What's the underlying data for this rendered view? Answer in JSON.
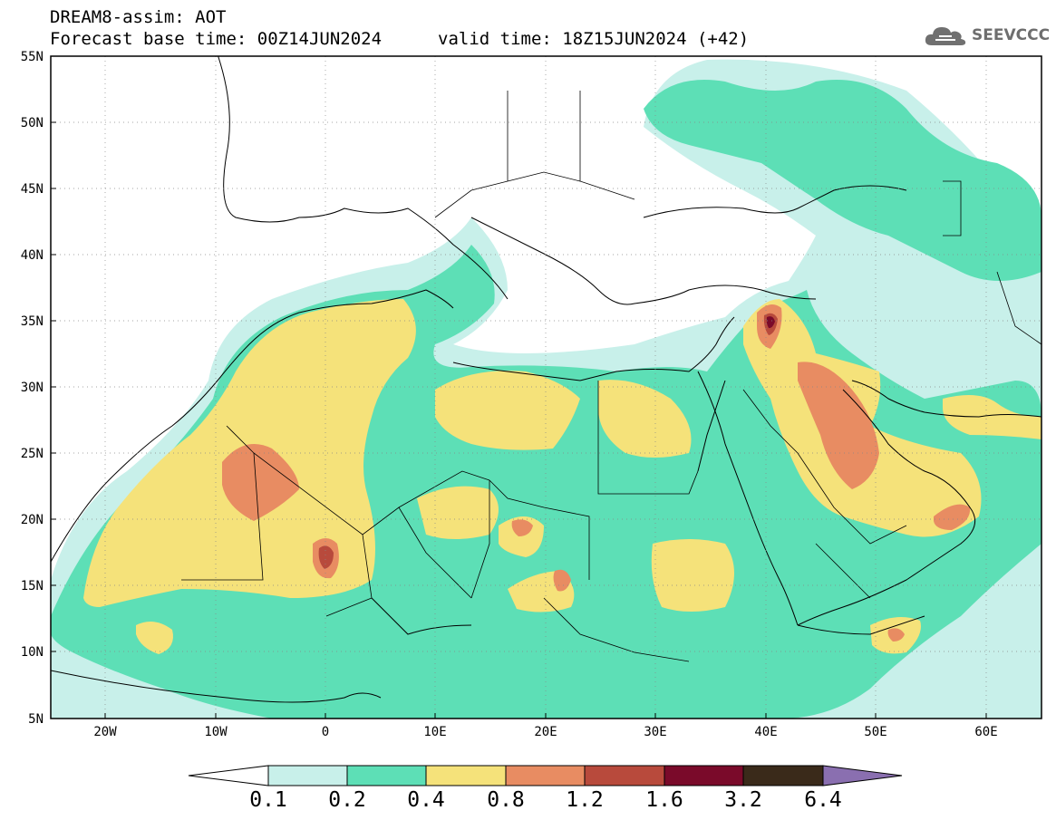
{
  "header": {
    "line1": "DREAM8-assim: AOT",
    "line2": "Forecast base time: 00Z14JUN2024",
    "valid": "valid time: 18Z15JUN2024 (+42)",
    "logo_text": "SEEVCCC"
  },
  "map": {
    "lat_labels": [
      "55N",
      "50N",
      "45N",
      "40N",
      "35N",
      "30N",
      "25N",
      "20N",
      "15N",
      "10N",
      "5N"
    ],
    "lon_labels": [
      "20W",
      "10W",
      "0",
      "10E",
      "20E",
      "30E",
      "40E",
      "50E",
      "60E"
    ],
    "bounds": {
      "lon_min": -25,
      "lon_max": 65,
      "lat_min": 5,
      "lat_max": 55
    }
  },
  "colorbar": {
    "labels": [
      "0.1",
      "0.2",
      "0.4",
      "0.8",
      "1.2",
      "1.6",
      "3.2",
      "6.4"
    ],
    "colors": [
      "#ffffff",
      "#c8f0ea",
      "#5ddfb6",
      "#f5e27a",
      "#e88c62",
      "#b84a3c",
      "#7a0a2a",
      "#3a2a1a",
      "#8a6fb0"
    ]
  },
  "palette": {
    "very_low": "#c8f0ea",
    "low": "#5ddfb6",
    "moderate": "#f5e27a",
    "high": "#e88c62",
    "very_high": "#b84a3c",
    "extreme": "#7a0a2a"
  }
}
